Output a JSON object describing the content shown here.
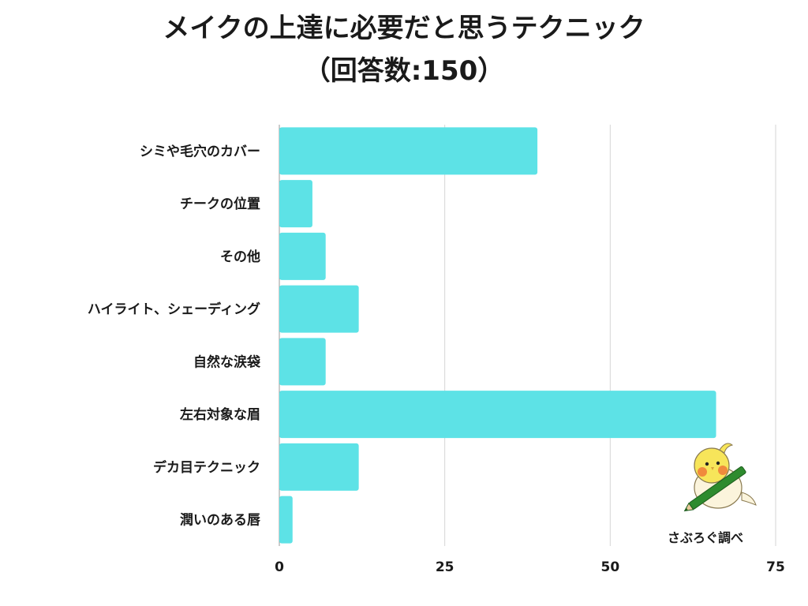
{
  "title": {
    "line1": "メイクの上達に必要だと思うテクニック",
    "line2": "（回答数:150）"
  },
  "credit": "さぶろぐ調べ",
  "colors": {
    "bar": "#5de2e6",
    "grid": "#d6d6d6",
    "text": "#1a1a1a"
  },
  "chart_data": {
    "type": "bar",
    "orientation": "horizontal",
    "categories": [
      "シミや毛穴のカバー",
      "チークの位置",
      "その他",
      "ハイライト、シェーディング",
      "自然な涙袋",
      "左右対象な眉",
      "デカ目テクニック",
      "潤いのある唇"
    ],
    "values": [
      39,
      5,
      7,
      12,
      7,
      66,
      12,
      2
    ],
    "xlim": [
      0,
      75
    ],
    "xticks": [
      "0",
      "25",
      "50",
      "75"
    ],
    "grid": true
  }
}
